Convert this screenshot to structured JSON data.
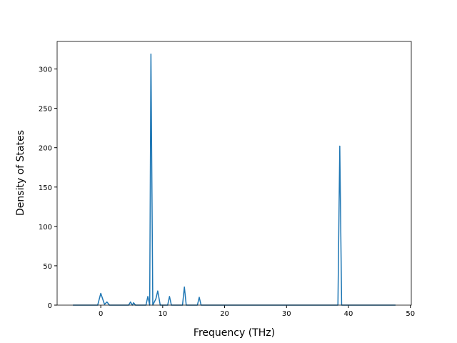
{
  "chart_data": {
    "type": "line",
    "x_label": "Frequency (THz)",
    "y_label": "Density of States",
    "x": [
      -4.5,
      -0.5,
      0,
      0.6,
      1,
      1.4,
      4.5,
      4.8,
      5.1,
      5.3,
      5.6,
      7.3,
      7.6,
      7.9,
      8.1,
      8.4,
      8.9,
      9.2,
      9.6,
      10.8,
      11.1,
      11.4,
      13.2,
      13.5,
      13.8,
      15.6,
      15.9,
      16.2,
      38.3,
      38.6,
      38.9,
      47.6
    ],
    "values": [
      0,
      0,
      15,
      1,
      4,
      0,
      0,
      4,
      0,
      3,
      0,
      0,
      11,
      0,
      319,
      0,
      8,
      18,
      0,
      0,
      11,
      0,
      0,
      23,
      0,
      0,
      10,
      0,
      0,
      202,
      0,
      0
    ],
    "color": "#1f77b4",
    "xlim": [
      -7.05,
      50.15
    ],
    "ylim": [
      0,
      335
    ],
    "xticks": [
      0,
      10,
      20,
      30,
      40,
      50
    ],
    "yticks": [
      0,
      50,
      100,
      150,
      200,
      250,
      300
    ]
  }
}
